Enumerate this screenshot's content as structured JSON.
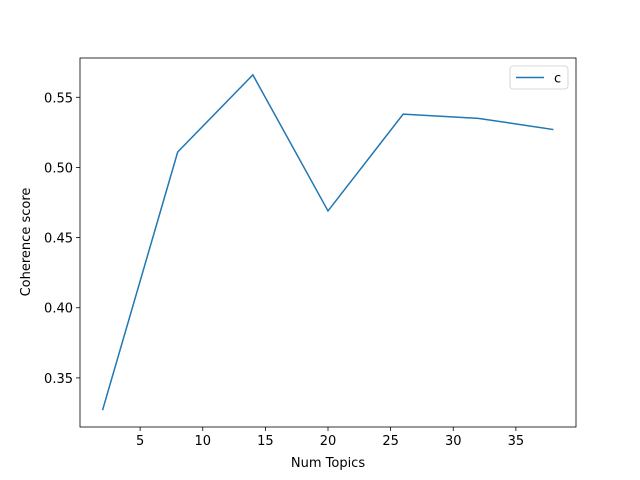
{
  "chart_data": {
    "type": "line",
    "x_label": "Num Topics",
    "y_label": "Coherence score",
    "x": [
      2,
      8,
      14,
      20,
      26,
      32,
      38
    ],
    "series": [
      {
        "name": "c",
        "color": "#1f77b4",
        "values": [
          0.327,
          0.511,
          0.566,
          0.469,
          0.538,
          0.535,
          0.527
        ]
      }
    ],
    "xlim": [
      0.2,
      39.8
    ],
    "xticks": [
      5,
      10,
      15,
      20,
      25,
      30,
      35
    ],
    "ylim": [
      0.315,
      0.578
    ],
    "yticks": [
      0.35,
      0.4,
      0.45,
      0.5,
      0.55
    ],
    "legend": "upper right",
    "grid": false
  }
}
